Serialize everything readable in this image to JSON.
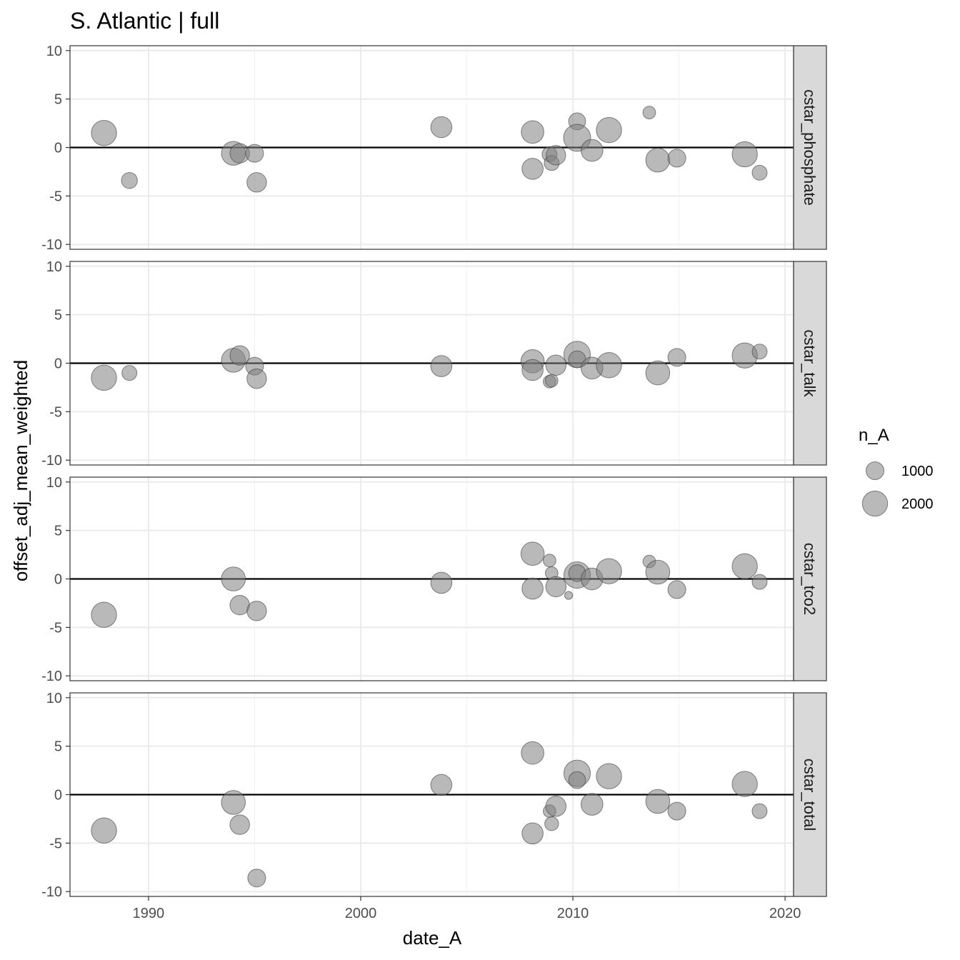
{
  "chart_data": {
    "type": "scatter",
    "title": "S. Atlantic | full",
    "xlabel": "date_A",
    "ylabel": "offset_adj_mean_weighted",
    "xlim": [
      1986.3,
      2020.4
    ],
    "ylim": [
      -10.5,
      10.5
    ],
    "x_ticks": [
      1990,
      2000,
      2010,
      2020
    ],
    "y_ticks": [
      -10,
      -5,
      0,
      5,
      10
    ],
    "grid": true,
    "reference_line_y": 0,
    "marker_color": "#7f7f7f",
    "legend": {
      "title": "n_A",
      "position": "right",
      "entries": [
        {
          "label": "1000",
          "n": 1000
        },
        {
          "label": "2000",
          "n": 2000
        }
      ]
    },
    "facets": [
      {
        "label": "cstar_phosphate",
        "points": [
          {
            "x": 1987.9,
            "y": 1.5,
            "n": 2000
          },
          {
            "x": 1989.1,
            "y": -3.4,
            "n": 800
          },
          {
            "x": 1994.0,
            "y": -0.6,
            "n": 1800
          },
          {
            "x": 1994.3,
            "y": -0.6,
            "n": 1200
          },
          {
            "x": 1995.0,
            "y": -0.6,
            "n": 1000
          },
          {
            "x": 1995.1,
            "y": -3.6,
            "n": 1200
          },
          {
            "x": 2003.8,
            "y": 2.1,
            "n": 1400
          },
          {
            "x": 2008.1,
            "y": 1.6,
            "n": 1600
          },
          {
            "x": 2008.1,
            "y": -2.2,
            "n": 1400
          },
          {
            "x": 2008.9,
            "y": -0.7,
            "n": 700
          },
          {
            "x": 2009.0,
            "y": -1.6,
            "n": 700
          },
          {
            "x": 2009.2,
            "y": -0.8,
            "n": 1200
          },
          {
            "x": 2010.2,
            "y": 2.7,
            "n": 900
          },
          {
            "x": 2010.2,
            "y": 1.0,
            "n": 2300
          },
          {
            "x": 2010.9,
            "y": -0.3,
            "n": 1500
          },
          {
            "x": 2011.7,
            "y": 1.8,
            "n": 2000
          },
          {
            "x": 2013.6,
            "y": 3.6,
            "n": 500
          },
          {
            "x": 2014.0,
            "y": -1.3,
            "n": 1800
          },
          {
            "x": 2014.9,
            "y": -1.1,
            "n": 1000
          },
          {
            "x": 2018.1,
            "y": -0.7,
            "n": 2000
          },
          {
            "x": 2018.8,
            "y": -2.6,
            "n": 700
          }
        ]
      },
      {
        "label": "cstar_talk",
        "points": [
          {
            "x": 1987.9,
            "y": -1.5,
            "n": 2000
          },
          {
            "x": 1989.1,
            "y": -1.0,
            "n": 700
          },
          {
            "x": 1994.0,
            "y": 0.3,
            "n": 1800
          },
          {
            "x": 1994.3,
            "y": 0.8,
            "n": 1200
          },
          {
            "x": 1995.0,
            "y": -0.3,
            "n": 1000
          },
          {
            "x": 1995.1,
            "y": -1.6,
            "n": 1200
          },
          {
            "x": 2003.8,
            "y": -0.3,
            "n": 1400
          },
          {
            "x": 2008.1,
            "y": 0.2,
            "n": 1700
          },
          {
            "x": 2008.1,
            "y": -0.7,
            "n": 1400
          },
          {
            "x": 2008.9,
            "y": -1.9,
            "n": 500
          },
          {
            "x": 2009.0,
            "y": -1.8,
            "n": 500
          },
          {
            "x": 2009.2,
            "y": -0.2,
            "n": 1300
          },
          {
            "x": 2010.2,
            "y": 0.9,
            "n": 2200
          },
          {
            "x": 2010.2,
            "y": 0.4,
            "n": 900
          },
          {
            "x": 2010.9,
            "y": -0.5,
            "n": 1500
          },
          {
            "x": 2011.7,
            "y": -0.2,
            "n": 2000
          },
          {
            "x": 2014.0,
            "y": -1.0,
            "n": 1800
          },
          {
            "x": 2014.9,
            "y": 0.6,
            "n": 1000
          },
          {
            "x": 2018.1,
            "y": 0.8,
            "n": 2000
          },
          {
            "x": 2018.8,
            "y": 1.2,
            "n": 700
          }
        ]
      },
      {
        "label": "cstar_tco2",
        "points": [
          {
            "x": 1987.9,
            "y": -3.7,
            "n": 2000
          },
          {
            "x": 1994.0,
            "y": 0.0,
            "n": 1800
          },
          {
            "x": 1994.3,
            "y": -2.7,
            "n": 1200
          },
          {
            "x": 1995.1,
            "y": -3.3,
            "n": 1200
          },
          {
            "x": 2003.8,
            "y": -0.4,
            "n": 1400
          },
          {
            "x": 2008.1,
            "y": 2.6,
            "n": 1700
          },
          {
            "x": 2008.1,
            "y": -1.0,
            "n": 1400
          },
          {
            "x": 2008.9,
            "y": 1.9,
            "n": 500
          },
          {
            "x": 2009.0,
            "y": 0.6,
            "n": 500
          },
          {
            "x": 2009.2,
            "y": -0.8,
            "n": 1300
          },
          {
            "x": 2009.8,
            "y": -1.7,
            "n": 200
          },
          {
            "x": 2010.2,
            "y": 0.4,
            "n": 2200
          },
          {
            "x": 2010.2,
            "y": 0.6,
            "n": 900
          },
          {
            "x": 2010.9,
            "y": 0.0,
            "n": 1500
          },
          {
            "x": 2011.7,
            "y": 0.8,
            "n": 2000
          },
          {
            "x": 2013.6,
            "y": 1.8,
            "n": 500
          },
          {
            "x": 2014.0,
            "y": 0.7,
            "n": 1800
          },
          {
            "x": 2014.9,
            "y": -1.1,
            "n": 1000
          },
          {
            "x": 2018.1,
            "y": 1.3,
            "n": 2000
          },
          {
            "x": 2018.8,
            "y": -0.3,
            "n": 700
          }
        ]
      },
      {
        "label": "cstar_total",
        "points": [
          {
            "x": 1987.9,
            "y": -3.7,
            "n": 2000
          },
          {
            "x": 1994.0,
            "y": -0.8,
            "n": 1800
          },
          {
            "x": 1994.3,
            "y": -3.1,
            "n": 1200
          },
          {
            "x": 1995.1,
            "y": -8.6,
            "n": 1000
          },
          {
            "x": 2003.8,
            "y": 1.0,
            "n": 1400
          },
          {
            "x": 2008.1,
            "y": 4.3,
            "n": 1600
          },
          {
            "x": 2008.1,
            "y": -4.0,
            "n": 1400
          },
          {
            "x": 2008.9,
            "y": -1.7,
            "n": 500
          },
          {
            "x": 2009.0,
            "y": -3.0,
            "n": 600
          },
          {
            "x": 2009.2,
            "y": -1.2,
            "n": 1300
          },
          {
            "x": 2010.2,
            "y": 2.2,
            "n": 2200
          },
          {
            "x": 2010.2,
            "y": 1.5,
            "n": 900
          },
          {
            "x": 2010.9,
            "y": -1.0,
            "n": 1500
          },
          {
            "x": 2011.7,
            "y": 1.9,
            "n": 2000
          },
          {
            "x": 2014.0,
            "y": -0.7,
            "n": 1800
          },
          {
            "x": 2014.9,
            "y": -1.7,
            "n": 1000
          },
          {
            "x": 2018.1,
            "y": 1.1,
            "n": 2000
          },
          {
            "x": 2018.8,
            "y": -1.7,
            "n": 700
          }
        ]
      }
    ]
  }
}
